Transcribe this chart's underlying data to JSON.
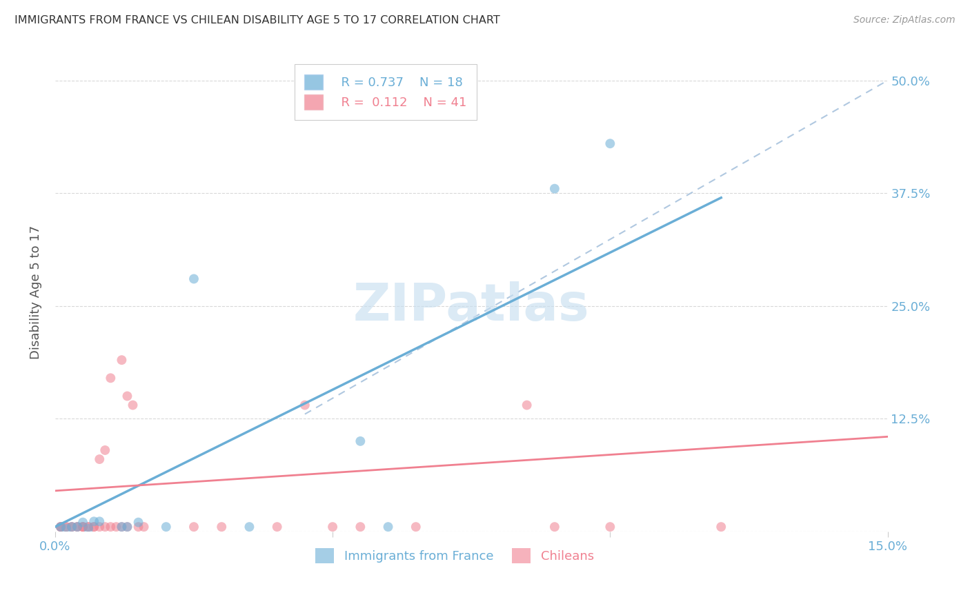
{
  "title": "IMMIGRANTS FROM FRANCE VS CHILEAN DISABILITY AGE 5 TO 17 CORRELATION CHART",
  "source": "Source: ZipAtlas.com",
  "ylabel": "Disability Age 5 to 17",
  "xlim": [
    0,
    0.15
  ],
  "ylim": [
    0,
    0.53
  ],
  "legend_blue_r": "R = 0.737",
  "legend_blue_n": "N = 18",
  "legend_pink_r": "R =  0.112",
  "legend_pink_n": "N = 41",
  "blue_color": "#6aaed6",
  "pink_color": "#f08090",
  "watermark_color": "#c8dff0",
  "blue_scatter_x": [
    0.001,
    0.002,
    0.003,
    0.004,
    0.005,
    0.006,
    0.007,
    0.008,
    0.012,
    0.013,
    0.015,
    0.02,
    0.025,
    0.035,
    0.055,
    0.06,
    0.09,
    0.1
  ],
  "blue_scatter_y": [
    0.005,
    0.003,
    0.005,
    0.005,
    0.01,
    0.003,
    0.011,
    0.011,
    0.005,
    0.005,
    0.01,
    0.005,
    0.28,
    0.005,
    0.1,
    0.005,
    0.38,
    0.43
  ],
  "pink_scatter_x": [
    0.001,
    0.001,
    0.001,
    0.002,
    0.002,
    0.003,
    0.003,
    0.004,
    0.004,
    0.005,
    0.005,
    0.005,
    0.006,
    0.006,
    0.007,
    0.007,
    0.008,
    0.008,
    0.009,
    0.009,
    0.01,
    0.01,
    0.011,
    0.012,
    0.012,
    0.013,
    0.013,
    0.014,
    0.015,
    0.016,
    0.025,
    0.03,
    0.04,
    0.045,
    0.05,
    0.055,
    0.065,
    0.085,
    0.09,
    0.1,
    0.12
  ],
  "pink_scatter_y": [
    0.005,
    0.005,
    0.005,
    0.005,
    0.005,
    0.005,
    0.005,
    0.005,
    0.005,
    0.005,
    0.005,
    0.005,
    0.005,
    0.005,
    0.005,
    0.005,
    0.005,
    0.08,
    0.09,
    0.005,
    0.005,
    0.17,
    0.005,
    0.19,
    0.005,
    0.15,
    0.005,
    0.14,
    0.005,
    0.005,
    0.005,
    0.005,
    0.005,
    0.14,
    0.005,
    0.005,
    0.005,
    0.14,
    0.005,
    0.005,
    0.005
  ],
  "blue_line_x": [
    0.0,
    0.12
  ],
  "blue_line_y": [
    0.005,
    0.37
  ],
  "pink_line_x": [
    0.0,
    0.15
  ],
  "pink_line_y": [
    0.045,
    0.105
  ],
  "dashed_line_x": [
    0.045,
    0.15
  ],
  "dashed_line_y": [
    0.13,
    0.5
  ],
  "background_color": "#ffffff",
  "grid_color": "#d8d8d8",
  "title_color": "#333333",
  "axis_label_color": "#555555",
  "tick_label_color": "#6aaed6",
  "marker_size": 100,
  "yticks": [
    0.0,
    0.125,
    0.25,
    0.375,
    0.5
  ],
  "ytick_labels_right": [
    "",
    "12.5%",
    "25.0%",
    "37.5%",
    "50.0%"
  ],
  "xticks": [
    0.0,
    0.05,
    0.1,
    0.15
  ],
  "xticklabels": [
    "0.0%",
    "",
    "",
    "15.0%"
  ]
}
